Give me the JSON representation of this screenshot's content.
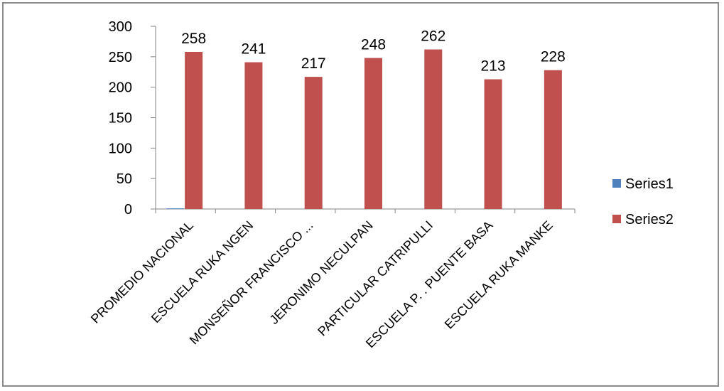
{
  "chart_data": {
    "type": "bar",
    "categories": [
      "PROMEDIO NACIONAL",
      "ESCUELA  RUKA NGEN",
      "MONSEÑOR FRANCISCO ...",
      "JERONIMO NECULPAN",
      "PARTICULAR CATRIPULLI",
      "ESCUELA P. . PUENTE BASA",
      "ESCUELA  RUKA MANKE"
    ],
    "series": [
      {
        "name": "Series1",
        "color": "#4f81bd",
        "values": [
          1,
          0,
          0,
          0,
          0,
          0,
          0
        ]
      },
      {
        "name": "Series2",
        "color": "#c0504d",
        "values": [
          258,
          241,
          217,
          248,
          262,
          213,
          228
        ],
        "data_labels": [
          "258",
          "241",
          "217",
          "248",
          "262",
          "213",
          "228"
        ]
      }
    ],
    "y_ticks": [
      "0",
      "50",
      "100",
      "150",
      "200",
      "250",
      "300"
    ],
    "ylim": [
      0,
      300
    ],
    "grid": false,
    "legend": "right",
    "title": "",
    "xlabel": "",
    "ylabel": ""
  }
}
